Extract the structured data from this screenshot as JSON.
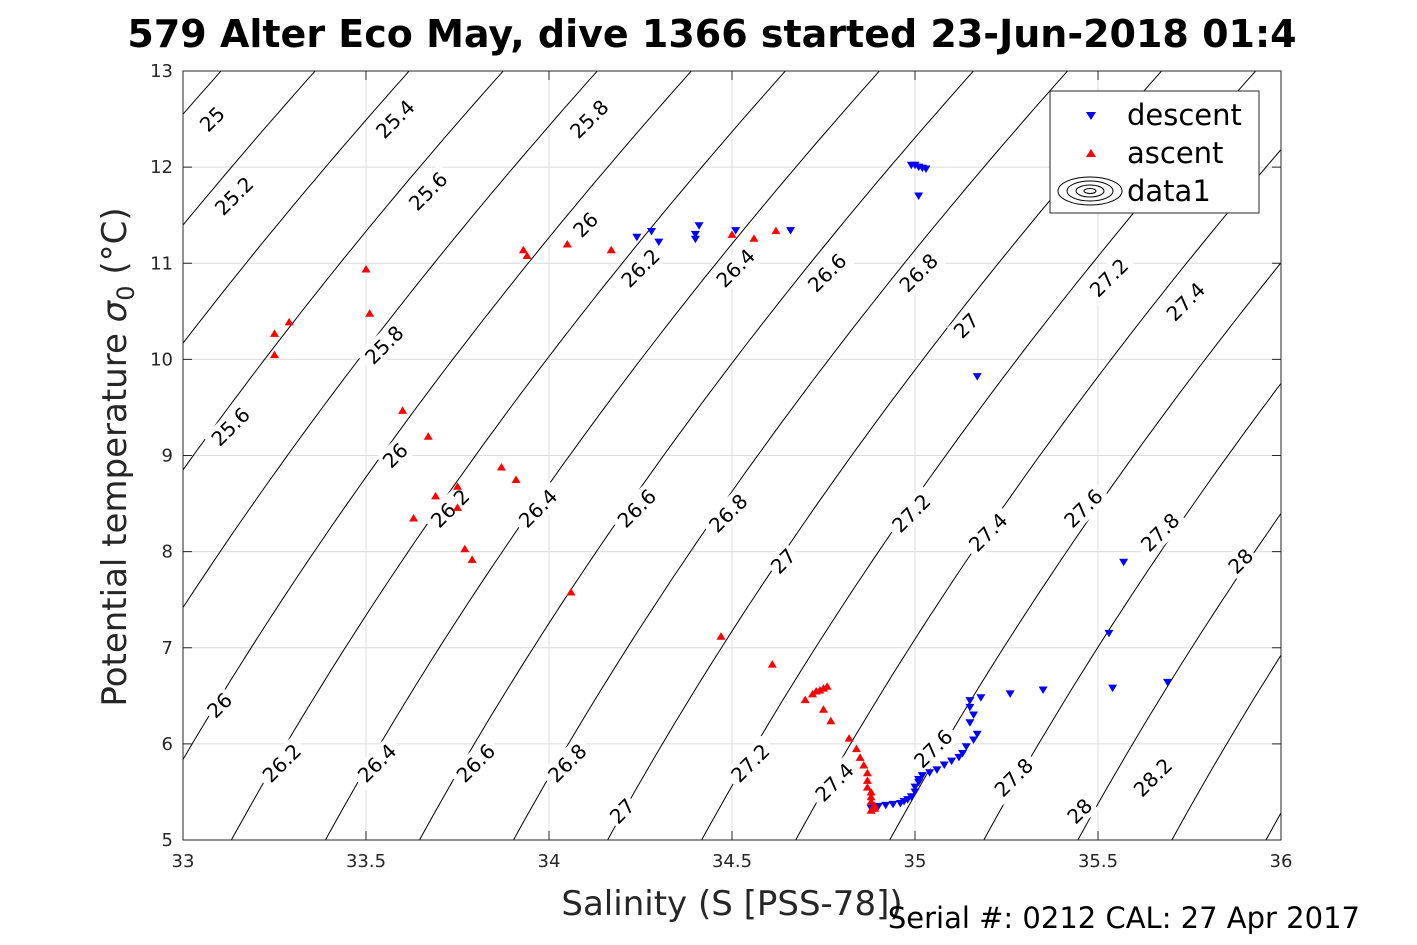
{
  "chart_data": {
    "type": "scatter",
    "title": "579 Alter Eco May, dive 1366 started 23-Jun-2018 01:4",
    "xlabel": "Salinity (S [PSS-78])",
    "ylabel_main": "Potential temperature ",
    "ylabel_sigma": "σ",
    "ylabel_sub": "0",
    "ylabel_unit": " (°C)",
    "xlim": [
      33,
      36
    ],
    "ylim": [
      5,
      13
    ],
    "xticks": [
      "33",
      "33.5",
      "34",
      "34.5",
      "35",
      "35.5",
      "36"
    ],
    "yticks": [
      "5",
      "6",
      "7",
      "8",
      "9",
      "10",
      "11",
      "12",
      "13"
    ],
    "grid": true,
    "legend_position": "top-right",
    "footer": "Serial #: 0212  CAL: 27 Apr 2017",
    "contours": {
      "name": "data1",
      "levels": [
        24.6,
        24.8,
        25.0,
        25.2,
        25.4,
        25.6,
        25.8,
        26.0,
        26.2,
        26.4,
        26.6,
        26.8,
        27.0,
        27.2,
        27.4,
        27.6,
        27.8,
        28.0,
        28.2,
        28.4
      ],
      "labels": [
        {
          "text": "25",
          "s": 33.08,
          "t": 12.5
        },
        {
          "text": "25.4",
          "s": 33.58,
          "t": 12.5
        },
        {
          "text": "25.8",
          "s": 34.11,
          "t": 12.5
        },
        {
          "text": "25.2",
          "s": 33.14,
          "t": 11.7
        },
        {
          "text": "25.6",
          "s": 33.67,
          "t": 11.75
        },
        {
          "text": "26",
          "s": 34.1,
          "t": 11.4
        },
        {
          "text": "26.2",
          "s": 34.25,
          "t": 10.95
        },
        {
          "text": "26.4",
          "s": 34.51,
          "t": 10.95
        },
        {
          "text": "26.6",
          "s": 34.76,
          "t": 10.9
        },
        {
          "text": "26.8",
          "s": 35.01,
          "t": 10.9
        },
        {
          "text": "27",
          "s": 35.14,
          "t": 10.35
        },
        {
          "text": "27.2",
          "s": 35.53,
          "t": 10.85
        },
        {
          "text": "27.4",
          "s": 35.74,
          "t": 10.6
        },
        {
          "text": "25.8",
          "s": 33.55,
          "t": 10.15
        },
        {
          "text": "25.6",
          "s": 33.13,
          "t": 9.3
        },
        {
          "text": "26",
          "s": 33.58,
          "t": 9.0
        },
        {
          "text": "26.2",
          "s": 33.73,
          "t": 8.45
        },
        {
          "text": "26.4",
          "s": 33.97,
          "t": 8.45
        },
        {
          "text": "26.6",
          "s": 34.24,
          "t": 8.45
        },
        {
          "text": "26.8",
          "s": 34.49,
          "t": 8.4
        },
        {
          "text": "27",
          "s": 34.64,
          "t": 7.9
        },
        {
          "text": "27.2",
          "s": 34.99,
          "t": 8.4
        },
        {
          "text": "27.4",
          "s": 35.2,
          "t": 8.2
        },
        {
          "text": "27.6",
          "s": 35.46,
          "t": 8.45
        },
        {
          "text": "27.8",
          "s": 35.67,
          "t": 8.2
        },
        {
          "text": "28",
          "s": 35.89,
          "t": 7.9
        },
        {
          "text": "26",
          "s": 33.1,
          "t": 6.4
        },
        {
          "text": "26.2",
          "s": 33.27,
          "t": 5.8
        },
        {
          "text": "26.4",
          "s": 33.53,
          "t": 5.8
        },
        {
          "text": "26.6",
          "s": 33.8,
          "t": 5.8
        },
        {
          "text": "26.8",
          "s": 34.05,
          "t": 5.8
        },
        {
          "text": "27",
          "s": 34.2,
          "t": 5.3
        },
        {
          "text": "27.2",
          "s": 34.55,
          "t": 5.8
        },
        {
          "text": "27.4",
          "s": 34.78,
          "t": 5.6
        },
        {
          "text": "27.6",
          "s": 35.05,
          "t": 5.95
        },
        {
          "text": "27.8",
          "s": 35.27,
          "t": 5.65
        },
        {
          "text": "28",
          "s": 35.45,
          "t": 5.3
        },
        {
          "text": "28.2",
          "s": 35.65,
          "t": 5.65
        }
      ]
    },
    "series": [
      {
        "name": "descent",
        "color": "#0000ff",
        "marker": "triangle-down",
        "points": [
          [
            34.99,
            12.02
          ],
          [
            35.0,
            12.02
          ],
          [
            35.01,
            12.0
          ],
          [
            35.02,
            11.99
          ],
          [
            35.03,
            11.98
          ],
          [
            35.01,
            11.7
          ],
          [
            34.24,
            11.27
          ],
          [
            34.28,
            11.33
          ],
          [
            34.3,
            11.22
          ],
          [
            34.4,
            11.25
          ],
          [
            34.4,
            11.3
          ],
          [
            34.41,
            11.39
          ],
          [
            34.51,
            11.34
          ],
          [
            34.66,
            11.34
          ],
          [
            35.17,
            9.82
          ],
          [
            35.57,
            7.89
          ],
          [
            35.53,
            7.15
          ],
          [
            35.54,
            6.58
          ],
          [
            35.69,
            6.64
          ],
          [
            35.35,
            6.56
          ],
          [
            35.26,
            6.52
          ],
          [
            35.18,
            6.48
          ],
          [
            35.15,
            6.45
          ],
          [
            35.15,
            6.38
          ],
          [
            35.16,
            6.3
          ],
          [
            35.15,
            6.22
          ],
          [
            35.17,
            6.1
          ],
          [
            35.16,
            6.04
          ],
          [
            35.14,
            5.97
          ],
          [
            35.13,
            5.9
          ],
          [
            35.12,
            5.86
          ],
          [
            35.1,
            5.82
          ],
          [
            35.08,
            5.78
          ],
          [
            35.06,
            5.73
          ],
          [
            35.04,
            5.7
          ],
          [
            35.02,
            5.67
          ],
          [
            35.01,
            5.63
          ],
          [
            35.01,
            5.6
          ],
          [
            35.0,
            5.55
          ],
          [
            35.0,
            5.5
          ],
          [
            34.99,
            5.45
          ],
          [
            34.98,
            5.42
          ],
          [
            34.97,
            5.4
          ],
          [
            34.96,
            5.38
          ],
          [
            34.94,
            5.37
          ],
          [
            34.92,
            5.36
          ],
          [
            34.9,
            5.35
          ],
          [
            34.88,
            5.33
          ]
        ]
      },
      {
        "name": "ascent",
        "color": "#ff0000",
        "marker": "triangle-up",
        "points": [
          [
            33.25,
            10.27
          ],
          [
            33.29,
            10.39
          ],
          [
            33.25,
            10.05
          ],
          [
            33.5,
            10.94
          ],
          [
            33.51,
            10.48
          ],
          [
            33.93,
            11.14
          ],
          [
            33.94,
            11.08
          ],
          [
            34.05,
            11.2
          ],
          [
            34.17,
            11.14
          ],
          [
            34.5,
            11.3
          ],
          [
            34.56,
            11.26
          ],
          [
            34.62,
            11.34
          ],
          [
            33.6,
            9.47
          ],
          [
            33.67,
            9.2
          ],
          [
            33.69,
            8.58
          ],
          [
            33.75,
            8.68
          ],
          [
            33.75,
            8.46
          ],
          [
            33.63,
            8.35
          ],
          [
            33.77,
            8.03
          ],
          [
            33.79,
            7.92
          ],
          [
            33.87,
            8.88
          ],
          [
            33.91,
            8.75
          ],
          [
            34.06,
            7.58
          ],
          [
            34.47,
            7.12
          ],
          [
            34.61,
            6.83
          ],
          [
            34.7,
            6.46
          ],
          [
            34.72,
            6.52
          ],
          [
            34.73,
            6.55
          ],
          [
            34.74,
            6.56
          ],
          [
            34.75,
            6.58
          ],
          [
            34.76,
            6.6
          ],
          [
            34.75,
            6.36
          ],
          [
            34.77,
            6.24
          ],
          [
            34.82,
            6.06
          ],
          [
            34.84,
            5.95
          ],
          [
            34.85,
            5.86
          ],
          [
            34.86,
            5.78
          ],
          [
            34.87,
            5.7
          ],
          [
            34.87,
            5.62
          ],
          [
            34.87,
            5.55
          ],
          [
            34.88,
            5.5
          ],
          [
            34.88,
            5.45
          ],
          [
            34.88,
            5.4
          ],
          [
            34.89,
            5.36
          ],
          [
            34.89,
            5.33
          ],
          [
            34.88,
            5.31
          ]
        ]
      }
    ]
  }
}
